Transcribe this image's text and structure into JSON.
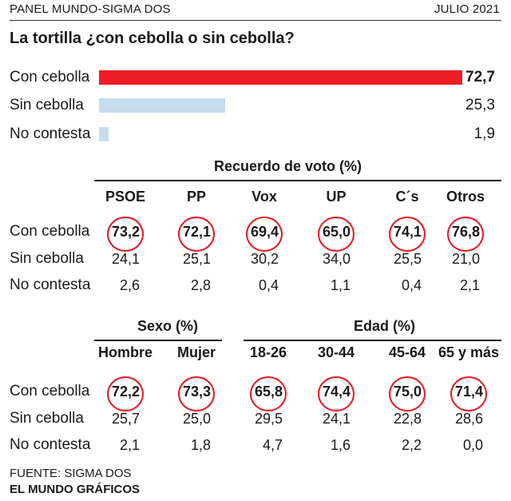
{
  "header": {
    "left": "PANEL MUNDO-SIGMA DOS",
    "right": "JULIO 2021"
  },
  "title": "La tortilla ¿con cebolla o sin cebolla?",
  "colors": {
    "highlight": "#ee1c25",
    "secondary": "#c7dcec",
    "circle": "#e21b23"
  },
  "chart_data": [
    {
      "type": "bar",
      "title": "La tortilla ¿con cebolla o sin cebolla?",
      "categories": [
        "Con cebolla",
        "Sin cebolla",
        "No contesta"
      ],
      "values": [
        72.7,
        25.3,
        1.9
      ],
      "value_labels": [
        "72,7",
        "25,3",
        "1,9"
      ]
    },
    {
      "type": "table",
      "title": "Recuerdo de voto (%)",
      "columns": [
        "PSOE",
        "PP",
        "Vox",
        "UP",
        "C´s",
        "Otros"
      ],
      "rows": [
        {
          "label": "Con cebolla",
          "values": [
            "73,2",
            "72,1",
            "69,4",
            "65,0",
            "74,1",
            "76,8"
          ]
        },
        {
          "label": "Sin cebolla",
          "values": [
            "24,1",
            "25,1",
            "30,2",
            "34,0",
            "25,5",
            "21,0"
          ]
        },
        {
          "label": "No contesta",
          "values": [
            "2,6",
            "2,8",
            "0,4",
            "1,1",
            "0,4",
            "2,1"
          ]
        }
      ]
    },
    {
      "type": "table",
      "title": "Sexo (%)",
      "columns": [
        "Hombre",
        "Mujer"
      ],
      "rows": [
        {
          "label": "Con cebolla",
          "values": [
            "72,2",
            "73,3"
          ]
        },
        {
          "label": "Sin cebolla",
          "values": [
            "25,7",
            "25,0"
          ]
        },
        {
          "label": "No contesta",
          "values": [
            "2,1",
            "1,8"
          ]
        }
      ]
    },
    {
      "type": "table",
      "title": "Edad (%)",
      "columns": [
        "18-26",
        "30-44",
        "45-64",
        "65 y más"
      ],
      "rows": [
        {
          "label": "Con cebolla",
          "values": [
            "65,8",
            "74,4",
            "75,0",
            "71,4"
          ]
        },
        {
          "label": "Sin cebolla",
          "values": [
            "29,5",
            "24,1",
            "22,8",
            "28,6"
          ]
        },
        {
          "label": "No contesta",
          "values": [
            "4,7",
            "1,6",
            "2,2",
            "0,0"
          ]
        }
      ]
    }
  ],
  "source": {
    "line1": "FUENTE: SIGMA DOS",
    "line2": "EL MUNDO GRÁFICOS"
  }
}
